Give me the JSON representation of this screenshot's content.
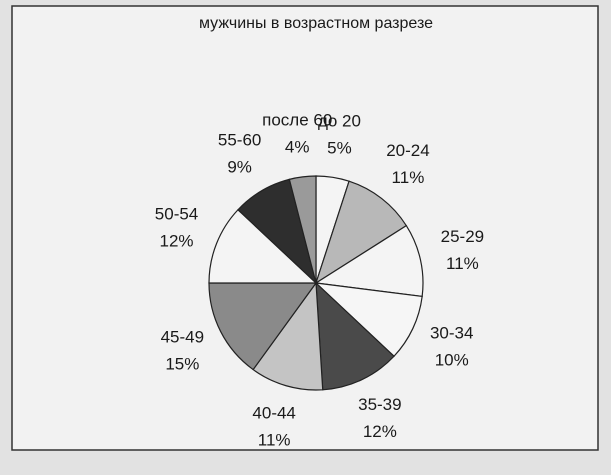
{
  "chart_data": {
    "type": "pie",
    "title": "мужчины в возрастном разрезе",
    "categories": [
      "до 20",
      "20-24",
      "25-29",
      "30-34",
      "35-39",
      "40-44",
      "45-49",
      "50-54",
      "55-60",
      "после 60"
    ],
    "values": [
      5,
      11,
      11,
      10,
      12,
      11,
      15,
      12,
      9,
      4
    ],
    "value_labels": [
      "5%",
      "11%",
      "11%",
      "10%",
      "12%",
      "11%",
      "15%",
      "12%",
      "9%",
      "4%"
    ],
    "colors": [
      "#f4f4f4",
      "#b8b8b8",
      "#f4f4f4",
      "#f6f6f6",
      "#4a4a4a",
      "#c4c4c4",
      "#8a8a8a",
      "#f4f4f4",
      "#2e2e2e",
      "#9a9a9a"
    ]
  }
}
